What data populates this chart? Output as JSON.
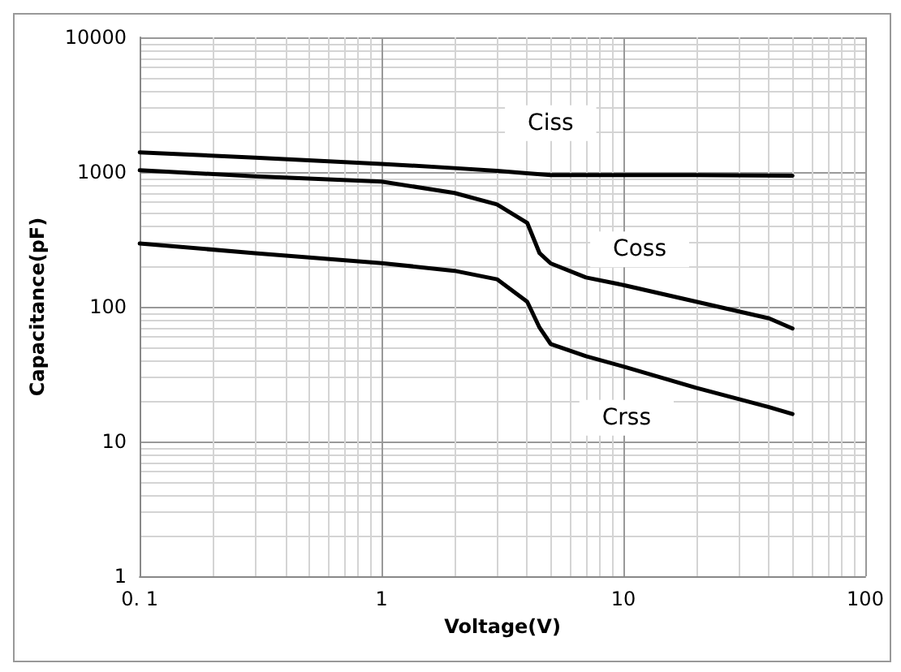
{
  "chart_data": {
    "type": "line",
    "xlabel": "Voltage(V)",
    "ylabel": "Capacitance(pF)",
    "log": "xy",
    "grid": true,
    "legend": false,
    "marker": "none",
    "line_style": "solid",
    "xlim": [
      0.1,
      100
    ],
    "xticks": [
      {
        "value": 0.1,
        "label": "0. 1"
      },
      1,
      10,
      100
    ],
    "ylim": [
      1,
      10000
    ],
    "yticks": [
      1,
      10,
      100,
      1000,
      10000
    ],
    "series": [
      {
        "name": "Ciss",
        "color": "#000000",
        "x": [
          0.1,
          0.3,
          1,
          2,
          3,
          4,
          5,
          7,
          10,
          20,
          50
        ],
        "values": [
          1400,
          1280,
          1150,
          1070,
          1020,
          980,
          950,
          950,
          950,
          950,
          940
        ]
      },
      {
        "name": "Coss",
        "color": "#000000",
        "x": [
          0.1,
          0.3,
          1,
          2,
          3,
          4,
          4.5,
          5,
          7,
          10,
          20,
          40,
          50
        ],
        "values": [
          1030,
          930,
          850,
          700,
          575,
          420,
          250,
          210,
          165,
          145,
          109,
          82,
          69
        ]
      },
      {
        "name": "Crss",
        "color": "#000000",
        "x": [
          0.1,
          0.3,
          1,
          2,
          3,
          4,
          4.5,
          5,
          7,
          10,
          20,
          40,
          50
        ],
        "values": [
          295,
          250,
          211,
          185,
          160,
          109,
          70,
          53,
          43,
          36,
          25,
          18,
          16
        ]
      }
    ]
  }
}
